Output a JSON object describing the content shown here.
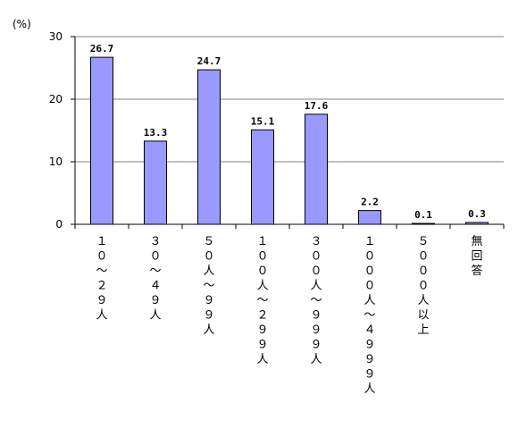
{
  "chart_data": {
    "type": "bar",
    "unit_label": "(%)",
    "categories": [
      "１０～２９人",
      "３０～４９人",
      "５０人～９９人",
      "１００人～２９９人",
      "３００人～９９９人",
      "１０００人～４９９９人",
      "５０００人以上",
      "無回答"
    ],
    "values": [
      26.7,
      13.3,
      24.7,
      15.1,
      17.6,
      2.2,
      0.1,
      0.3
    ],
    "value_labels": [
      "26.7",
      "13.3",
      "24.7",
      "15.1",
      "17.6",
      "2.2",
      "0.1",
      "0.3"
    ],
    "y_ticks": [
      "0",
      "10",
      "20",
      "30"
    ],
    "ylim": [
      0,
      30
    ],
    "grid": true,
    "bar_color": "#9999ff",
    "bar_stroke": "#000000",
    "grid_color": "#808080"
  }
}
